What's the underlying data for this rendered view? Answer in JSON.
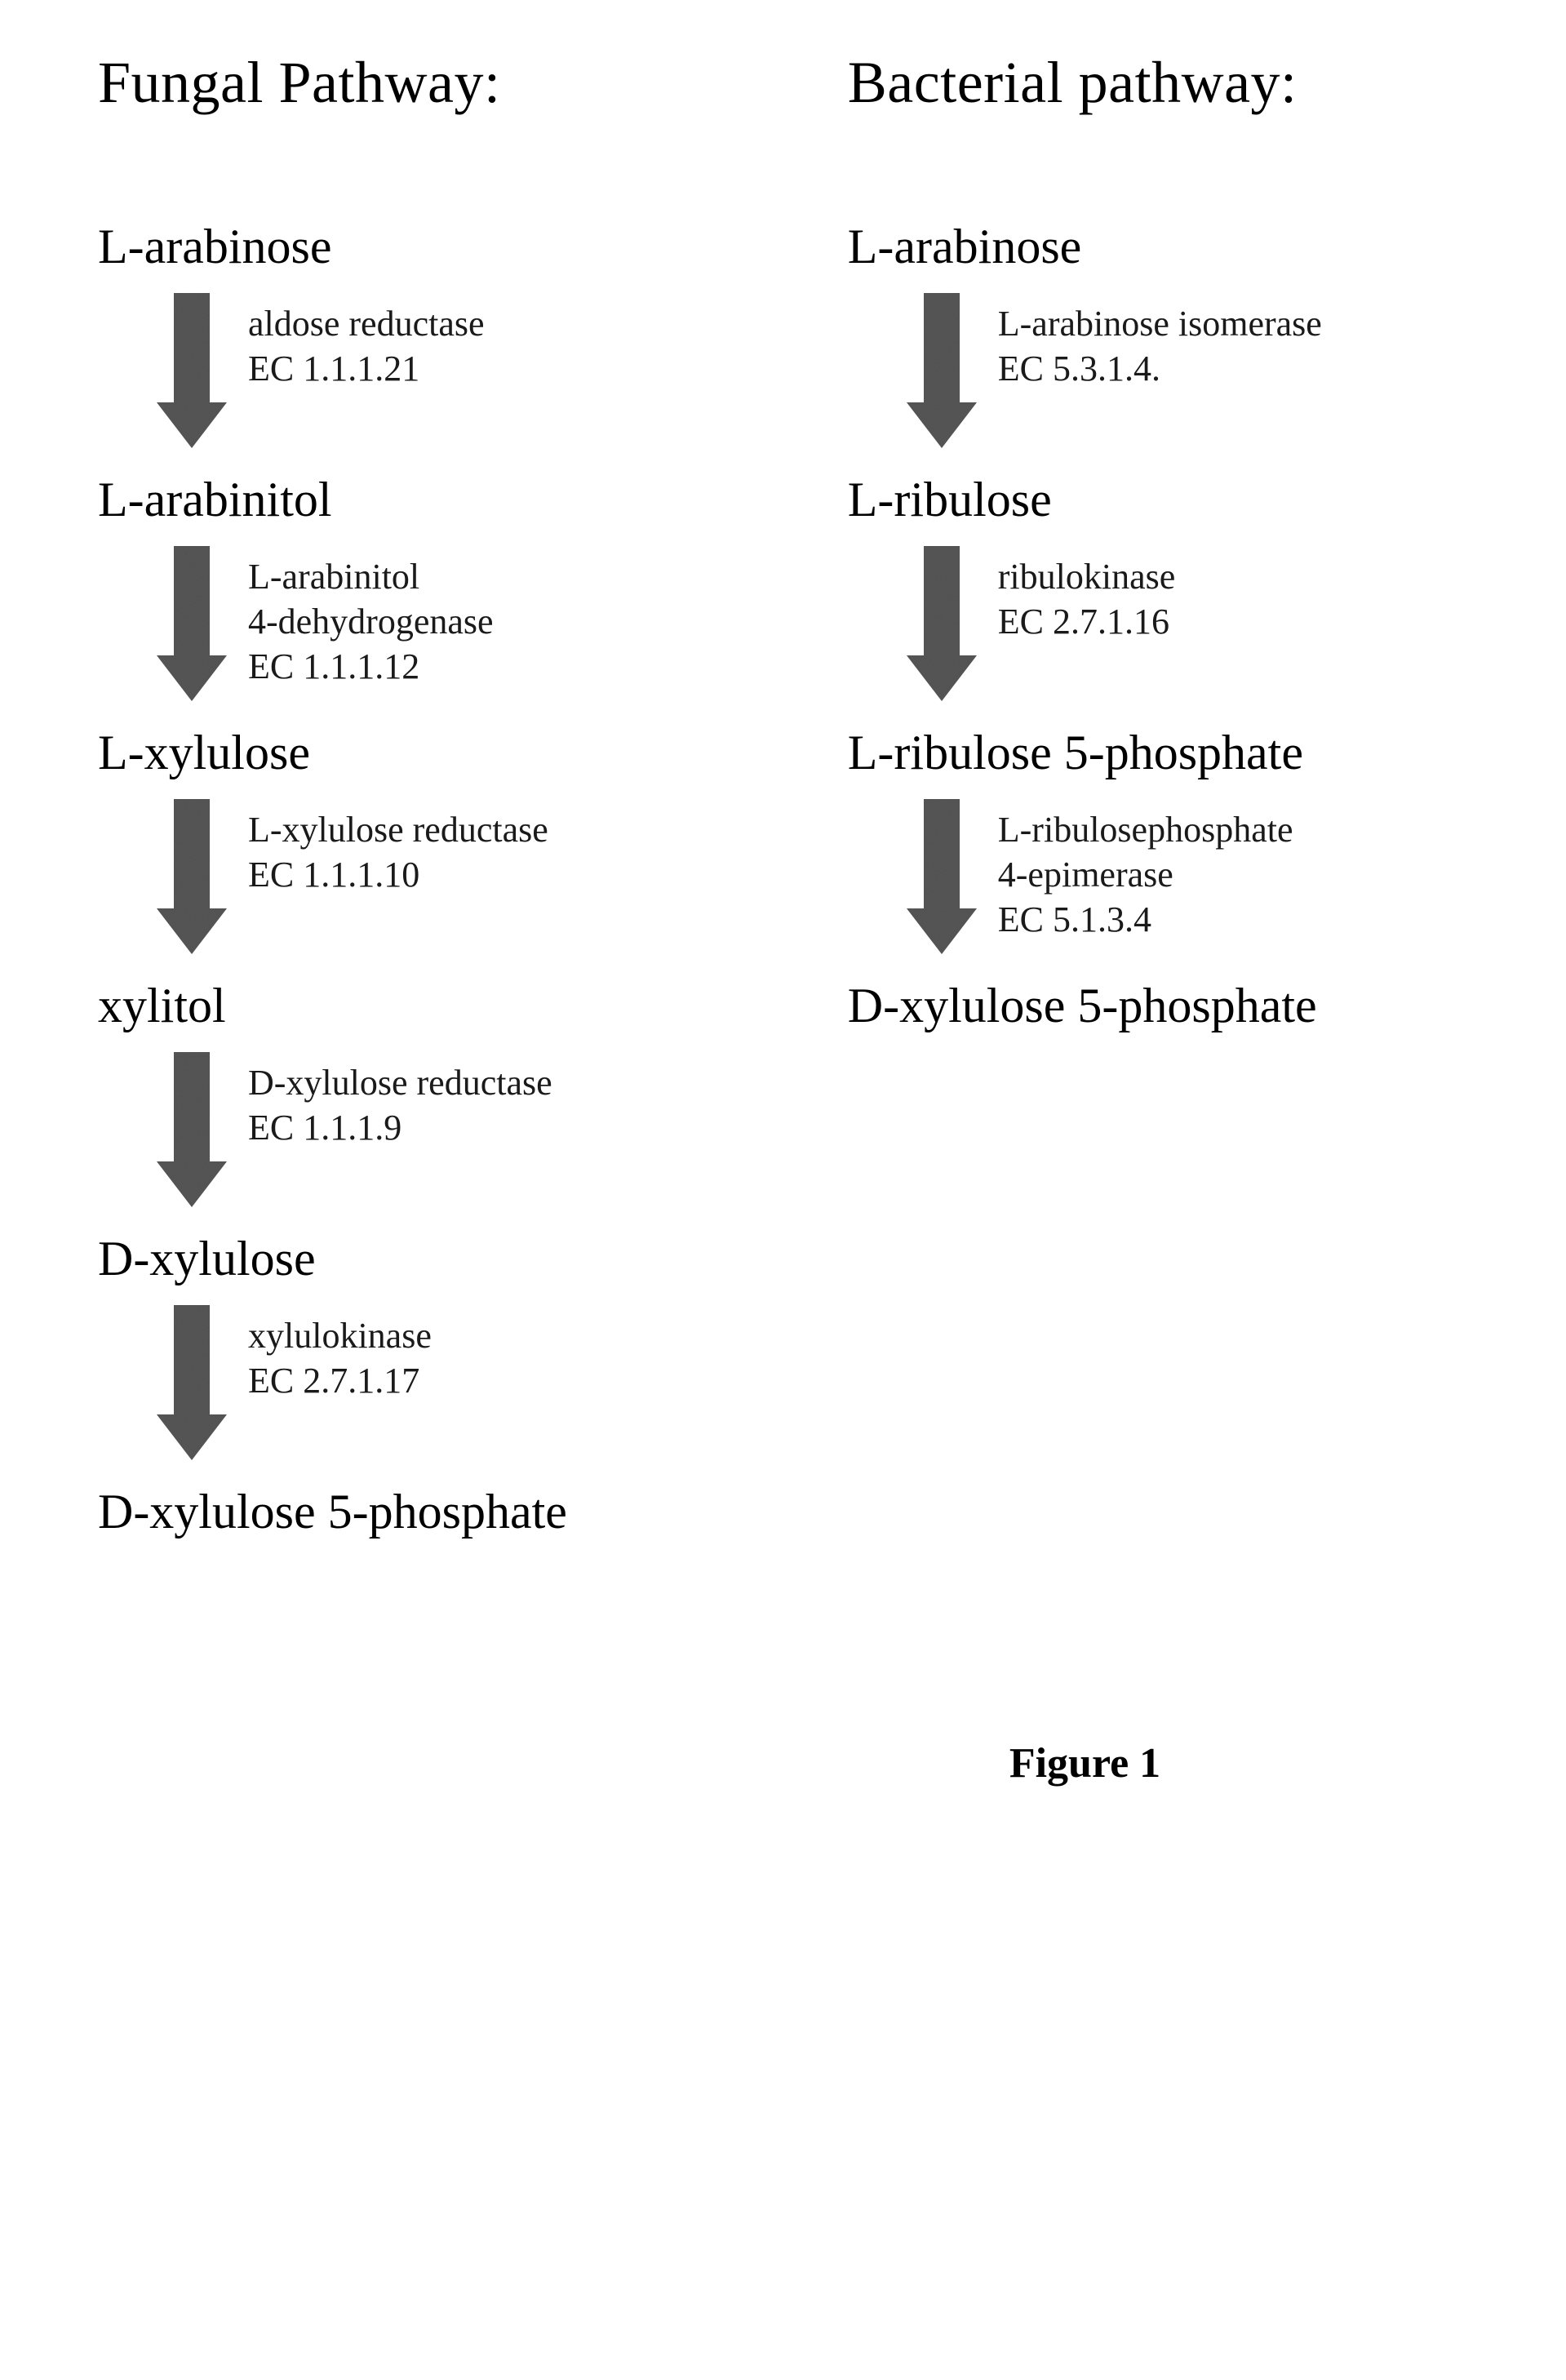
{
  "figure_label": "Figure 1",
  "arrow_style": {
    "shaft_width": 44,
    "head_width": 86,
    "total_height": 190,
    "head_height": 56,
    "fill": "#585858",
    "noise_opacity": 0.18
  },
  "fungal": {
    "title": "Fungal Pathway:",
    "steps": [
      {
        "metabolite": "L-arabinose",
        "enzyme_lines": [
          "aldose reductase",
          "EC 1.1.1.21"
        ]
      },
      {
        "metabolite": "L-arabinitol",
        "enzyme_lines": [
          "L-arabinitol",
          "4-dehydrogenase",
          "EC 1.1.1.12"
        ]
      },
      {
        "metabolite": "L-xylulose",
        "enzyme_lines": [
          "L-xylulose reductase",
          "EC 1.1.1.10"
        ]
      },
      {
        "metabolite": "xylitol",
        "enzyme_lines": [
          "D-xylulose reductase",
          "EC 1.1.1.9"
        ]
      },
      {
        "metabolite": "D-xylulose",
        "enzyme_lines": [
          "xylulokinase",
          "EC 2.7.1.17"
        ]
      },
      {
        "metabolite": "D-xylulose 5-phosphate",
        "enzyme_lines": null
      }
    ]
  },
  "bacterial": {
    "title": "Bacterial pathway:",
    "steps": [
      {
        "metabolite": "L-arabinose",
        "enzyme_lines": [
          "L-arabinose isomerase",
          "EC 5.3.1.4."
        ]
      },
      {
        "metabolite": "L-ribulose",
        "enzyme_lines": [
          "ribulokinase",
          "EC 2.7.1.16"
        ]
      },
      {
        "metabolite": "L-ribulose 5-phosphate",
        "enzyme_lines": [
          "L-ribulosephosphate",
          "4-epimerase",
          "EC 5.1.3.4"
        ]
      },
      {
        "metabolite": "D-xylulose 5-phosphate",
        "enzyme_lines": null
      }
    ]
  }
}
